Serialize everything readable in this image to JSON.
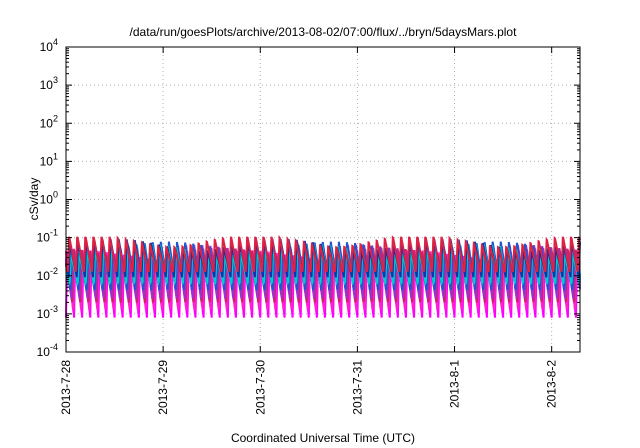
{
  "chart_data": {
    "type": "line",
    "title": "/data/run/goesPlots/archive/2013-08-02/07:00/flux/../bryn/5daysMars.plot",
    "xlabel": "Coordinated Universal Time (UTC)",
    "ylabel": "cSv/day",
    "xlim": [
      "2013-07-28T00:00",
      "2013-08-02T07:00"
    ],
    "ylim": [
      0.0001,
      10000
    ],
    "yscale": "log",
    "grid": true,
    "legend": "none",
    "x_ticks": [
      "2013-7-28",
      "2013-7-29",
      "2013-7-30",
      "2013-7-31",
      "2013-8-1",
      "2013-8-2"
    ],
    "y_ticks": [
      {
        "base": "10",
        "exp": "-4"
      },
      {
        "base": "10",
        "exp": "-3"
      },
      {
        "base": "10",
        "exp": "-2"
      },
      {
        "base": "10",
        "exp": "-1"
      },
      {
        "base": "10",
        "exp": "0"
      },
      {
        "base": "10",
        "exp": "1"
      },
      {
        "base": "10",
        "exp": "2"
      },
      {
        "base": "10",
        "exp": "3"
      },
      {
        "base": "10",
        "exp": "4"
      }
    ],
    "pattern": {
      "period_hours": 2.0,
      "peak_top": 0.1,
      "trough_bottom": 0.0007
    },
    "series": [
      {
        "color": "#ff00ff",
        "peak": 0.03,
        "trough": 0.0008
      },
      {
        "color": "#ff22cc",
        "peak": 0.035,
        "trough": 0.0012
      },
      {
        "color": "#cc2266",
        "peak": 0.045,
        "trough": 0.0018
      },
      {
        "color": "#9933cc",
        "peak": 0.05,
        "trough": 0.0025
      },
      {
        "color": "#2255cc",
        "peak": 0.06,
        "trough": 0.004
      },
      {
        "color": "#00cccc",
        "peak": 0.055,
        "trough": 0.006
      },
      {
        "color": "#1133aa",
        "peak": 0.07,
        "trough": 0.009
      },
      {
        "color": "#dd2244",
        "peak": 0.09,
        "trough": 0.012
      }
    ]
  }
}
